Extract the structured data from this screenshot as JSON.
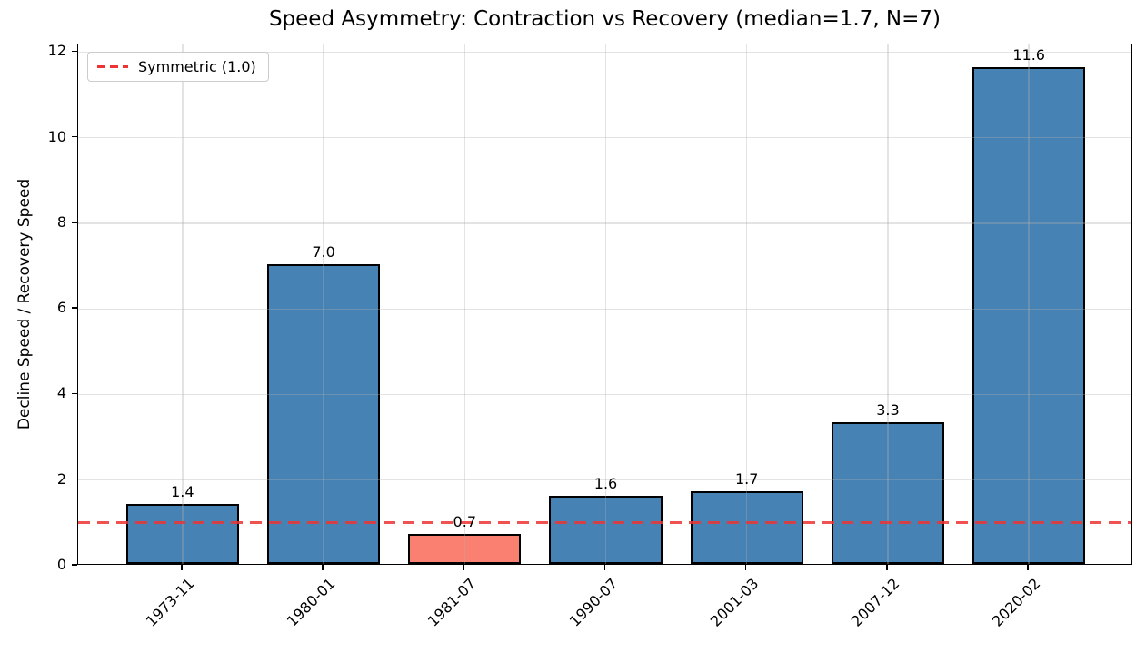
{
  "chart_data": {
    "type": "bar",
    "title": "Speed Asymmetry: Contraction vs Recovery (median=1.7, N=7)",
    "xlabel": "",
    "ylabel": "Decline Speed / Recovery Speed",
    "categories": [
      "1973-11",
      "1980-01",
      "1981-07",
      "1990-07",
      "2001-03",
      "2007-12",
      "2020-02"
    ],
    "values": [
      1.4,
      7.0,
      0.7,
      1.6,
      1.7,
      3.3,
      11.6
    ],
    "bar_labels": [
      "1.4",
      "7.0",
      "0.7",
      "1.6",
      "1.7",
      "3.3",
      "11.6"
    ],
    "bar_colors": [
      "#4682b4",
      "#4682b4",
      "#fa8072",
      "#4682b4",
      "#4682b4",
      "#4682b4",
      "#4682b4"
    ],
    "edge_color": "#000000",
    "yticks": [
      0,
      2,
      4,
      6,
      8,
      10,
      12
    ],
    "ylim": [
      0,
      12.18
    ],
    "grid": true,
    "legend": {
      "position": "upper-left",
      "entries": [
        {
          "label": "Symmetric (1.0)",
          "color": "#ee3333",
          "style": "dashed"
        }
      ]
    },
    "reference_line": {
      "y": 1.0,
      "color": "#ee3333",
      "style": "dashed",
      "label": "Symmetric (1.0)"
    }
  }
}
